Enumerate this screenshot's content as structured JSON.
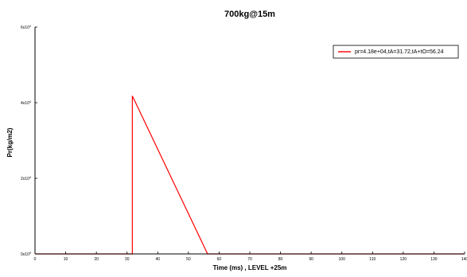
{
  "chart_data": {
    "type": "line",
    "title": "700kg@15m",
    "xlabel": "Time (ms) , LEVEL +25m",
    "ylabel": "Pr(kg/m2)",
    "xlim": [
      0,
      140
    ],
    "ylim": [
      0,
      60000
    ],
    "x_ticks": [
      0,
      10,
      20,
      30,
      40,
      50,
      60,
      70,
      80,
      90,
      100,
      110,
      120,
      130,
      140
    ],
    "x_tick_labels": [
      "0",
      "10",
      "20",
      "30",
      "40",
      "50",
      "60",
      "70",
      "80",
      "90",
      "100",
      "110",
      "120",
      "130",
      "140"
    ],
    "y_ticks": [
      0,
      20000,
      40000,
      60000
    ],
    "y_tick_labels": [
      {
        "base": "0x10",
        "exp": "0"
      },
      {
        "base": "2x10",
        "exp": "4"
      },
      {
        "base": "4x10",
        "exp": "4"
      },
      {
        "base": "6x10",
        "exp": "4"
      }
    ],
    "grid": false,
    "legend_position": "top-right",
    "series": [
      {
        "name": "pr=4.18e+04,tA=31.72,tA+tO=56.24",
        "color": "#ff0000",
        "x": [
          0,
          31.72,
          31.72,
          56.24,
          140
        ],
        "y": [
          0,
          0,
          41800,
          0,
          0
        ]
      }
    ]
  }
}
